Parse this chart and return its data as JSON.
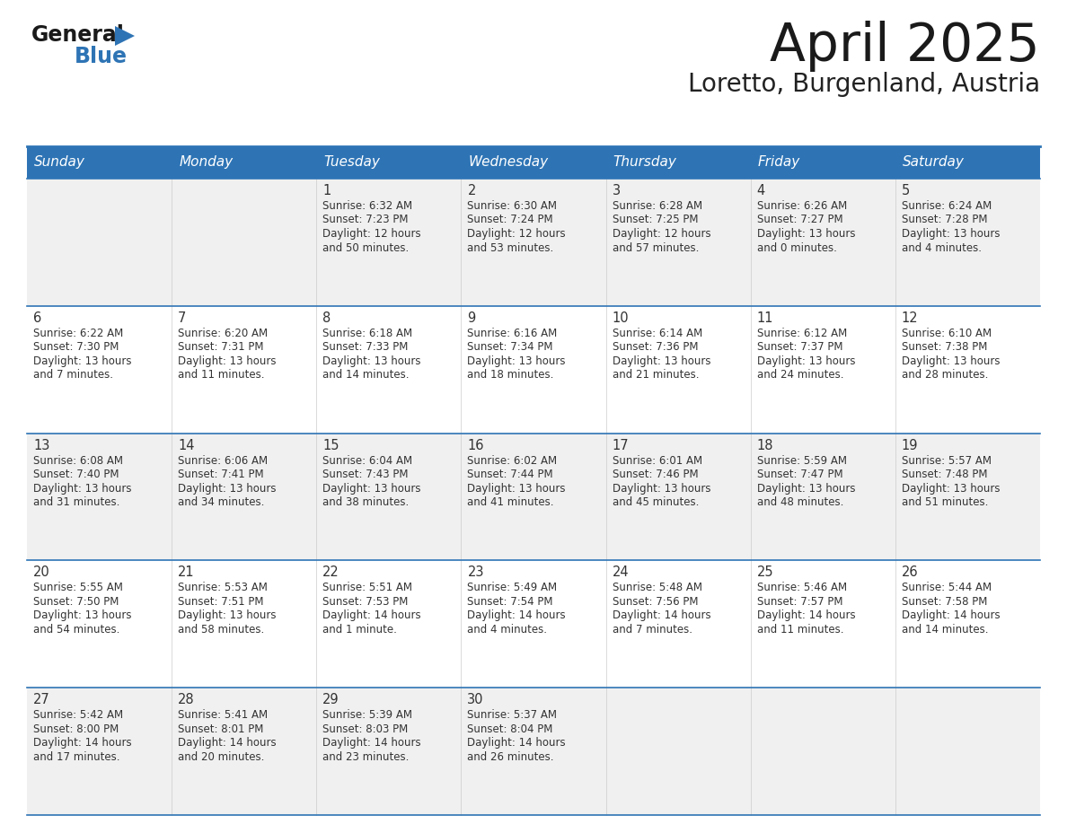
{
  "title": "April 2025",
  "subtitle": "Loretto, Burgenland, Austria",
  "days_of_week": [
    "Sunday",
    "Monday",
    "Tuesday",
    "Wednesday",
    "Thursday",
    "Friday",
    "Saturday"
  ],
  "header_bg": "#2e74b5",
  "header_text": "#ffffff",
  "row_bg_light": "#f0f0f0",
  "row_bg_white": "#ffffff",
  "grid_line_color": "#2e74b5",
  "cell_text_color": "#333333",
  "day_num_color": "#333333",
  "calendar": [
    [
      {
        "day": null,
        "data": null
      },
      {
        "day": null,
        "data": null
      },
      {
        "day": 1,
        "data": "Sunrise: 6:32 AM\nSunset: 7:23 PM\nDaylight: 12 hours\nand 50 minutes."
      },
      {
        "day": 2,
        "data": "Sunrise: 6:30 AM\nSunset: 7:24 PM\nDaylight: 12 hours\nand 53 minutes."
      },
      {
        "day": 3,
        "data": "Sunrise: 6:28 AM\nSunset: 7:25 PM\nDaylight: 12 hours\nand 57 minutes."
      },
      {
        "day": 4,
        "data": "Sunrise: 6:26 AM\nSunset: 7:27 PM\nDaylight: 13 hours\nand 0 minutes."
      },
      {
        "day": 5,
        "data": "Sunrise: 6:24 AM\nSunset: 7:28 PM\nDaylight: 13 hours\nand 4 minutes."
      }
    ],
    [
      {
        "day": 6,
        "data": "Sunrise: 6:22 AM\nSunset: 7:30 PM\nDaylight: 13 hours\nand 7 minutes."
      },
      {
        "day": 7,
        "data": "Sunrise: 6:20 AM\nSunset: 7:31 PM\nDaylight: 13 hours\nand 11 minutes."
      },
      {
        "day": 8,
        "data": "Sunrise: 6:18 AM\nSunset: 7:33 PM\nDaylight: 13 hours\nand 14 minutes."
      },
      {
        "day": 9,
        "data": "Sunrise: 6:16 AM\nSunset: 7:34 PM\nDaylight: 13 hours\nand 18 minutes."
      },
      {
        "day": 10,
        "data": "Sunrise: 6:14 AM\nSunset: 7:36 PM\nDaylight: 13 hours\nand 21 minutes."
      },
      {
        "day": 11,
        "data": "Sunrise: 6:12 AM\nSunset: 7:37 PM\nDaylight: 13 hours\nand 24 minutes."
      },
      {
        "day": 12,
        "data": "Sunrise: 6:10 AM\nSunset: 7:38 PM\nDaylight: 13 hours\nand 28 minutes."
      }
    ],
    [
      {
        "day": 13,
        "data": "Sunrise: 6:08 AM\nSunset: 7:40 PM\nDaylight: 13 hours\nand 31 minutes."
      },
      {
        "day": 14,
        "data": "Sunrise: 6:06 AM\nSunset: 7:41 PM\nDaylight: 13 hours\nand 34 minutes."
      },
      {
        "day": 15,
        "data": "Sunrise: 6:04 AM\nSunset: 7:43 PM\nDaylight: 13 hours\nand 38 minutes."
      },
      {
        "day": 16,
        "data": "Sunrise: 6:02 AM\nSunset: 7:44 PM\nDaylight: 13 hours\nand 41 minutes."
      },
      {
        "day": 17,
        "data": "Sunrise: 6:01 AM\nSunset: 7:46 PM\nDaylight: 13 hours\nand 45 minutes."
      },
      {
        "day": 18,
        "data": "Sunrise: 5:59 AM\nSunset: 7:47 PM\nDaylight: 13 hours\nand 48 minutes."
      },
      {
        "day": 19,
        "data": "Sunrise: 5:57 AM\nSunset: 7:48 PM\nDaylight: 13 hours\nand 51 minutes."
      }
    ],
    [
      {
        "day": 20,
        "data": "Sunrise: 5:55 AM\nSunset: 7:50 PM\nDaylight: 13 hours\nand 54 minutes."
      },
      {
        "day": 21,
        "data": "Sunrise: 5:53 AM\nSunset: 7:51 PM\nDaylight: 13 hours\nand 58 minutes."
      },
      {
        "day": 22,
        "data": "Sunrise: 5:51 AM\nSunset: 7:53 PM\nDaylight: 14 hours\nand 1 minute."
      },
      {
        "day": 23,
        "data": "Sunrise: 5:49 AM\nSunset: 7:54 PM\nDaylight: 14 hours\nand 4 minutes."
      },
      {
        "day": 24,
        "data": "Sunrise: 5:48 AM\nSunset: 7:56 PM\nDaylight: 14 hours\nand 7 minutes."
      },
      {
        "day": 25,
        "data": "Sunrise: 5:46 AM\nSunset: 7:57 PM\nDaylight: 14 hours\nand 11 minutes."
      },
      {
        "day": 26,
        "data": "Sunrise: 5:44 AM\nSunset: 7:58 PM\nDaylight: 14 hours\nand 14 minutes."
      }
    ],
    [
      {
        "day": 27,
        "data": "Sunrise: 5:42 AM\nSunset: 8:00 PM\nDaylight: 14 hours\nand 17 minutes."
      },
      {
        "day": 28,
        "data": "Sunrise: 5:41 AM\nSunset: 8:01 PM\nDaylight: 14 hours\nand 20 minutes."
      },
      {
        "day": 29,
        "data": "Sunrise: 5:39 AM\nSunset: 8:03 PM\nDaylight: 14 hours\nand 23 minutes."
      },
      {
        "day": 30,
        "data": "Sunrise: 5:37 AM\nSunset: 8:04 PM\nDaylight: 14 hours\nand 26 minutes."
      },
      {
        "day": null,
        "data": null
      },
      {
        "day": null,
        "data": null
      },
      {
        "day": null,
        "data": null
      }
    ]
  ]
}
